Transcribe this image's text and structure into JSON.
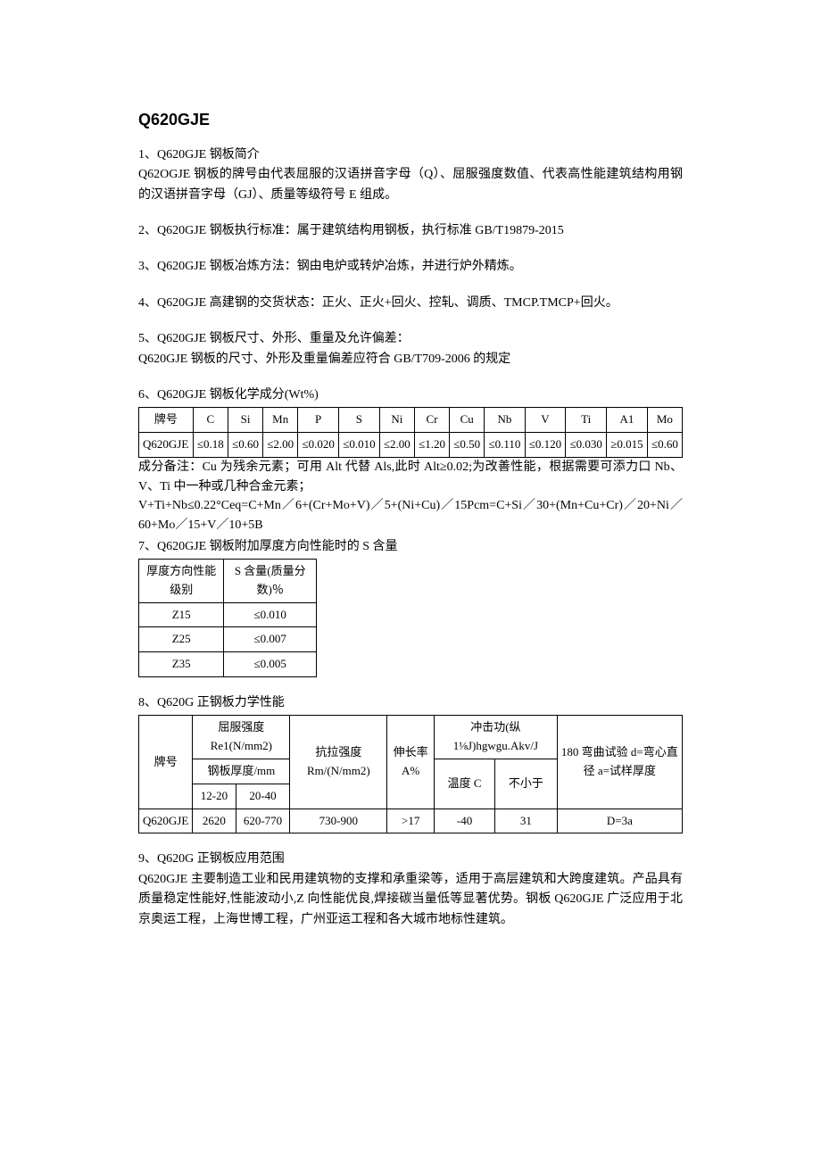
{
  "title": "Q620GJE",
  "sections": {
    "s1": {
      "heading": "1、Q620GJE 钢板简介",
      "body": "Q62OGJE 钢板的牌号由代表屈服的汉语拼音字母（Q）、屈服强度数值、代表高性能建筑结构用钢的汉语拼音字母（GJ）、质量等级符号 E 组成。"
    },
    "s2": {
      "line": "2、Q620GJE 钢板执行标准：属于建筑结构用钢板，执行标准 GB/T19879-2015"
    },
    "s3": {
      "line": "3、Q620GJE 钢板冶炼方法：钢由电炉或转炉冶炼，并进行炉外精炼。"
    },
    "s4": {
      "line": "4、Q620GJE 高建钢的交货状态：正火、正火+回火、控轧、调质、TMCP.TMCP+回火。"
    },
    "s5": {
      "heading": "5、Q620GJE 钢板尺寸、外形、重量及允许偏差：",
      "body": "Q620GJE 钢板的尺寸、外形及重量偏差应符合 GB/T709-2006 的规定"
    },
    "s6": {
      "heading": "6、Q620GJE 钢板化学成分(Wt%)",
      "columns": [
        "牌号",
        "C",
        "Si",
        "Mn",
        "P",
        "S",
        "Ni",
        "Cr",
        "Cu",
        "Nb",
        "V",
        "Ti",
        "A1",
        "Mo"
      ],
      "row_label": "Q620GJE",
      "row": [
        "≤0.18",
        "≤0.60",
        "≤2.00",
        "≤0.020",
        "≤0.010",
        "≤2.00",
        "≤1.20",
        "≤0.50",
        "≤0.110",
        "≤0.120",
        "≤0.030",
        "≥0.015",
        "≤0.60"
      ],
      "note1": "成分备注：Cu 为残余元素；可用 Alt 代替 Als,此时 Alt≥0.02;为改善性能，根据需要可添力口 Nb、V、Ti 中一种或几种合金元素；",
      "note2": "V+Ti+Nb≤0.22°Ceq=C+Mn／6+(Cr+Mo+V)／5+(Ni+Cu)／15Pcm=C+Si／30+(Mn+Cu+Cr)／20+Ni／60+Mo／15+V／10+5B"
    },
    "s7": {
      "heading": "7、Q620GJE 钢板附加厚度方向性能时的 S 含量",
      "columns": [
        "厚度方向性能级别",
        "S 含量(质量分数)％"
      ],
      "rows": [
        [
          "Z15",
          "≤0.010"
        ],
        [
          "Z25",
          "≤0.007"
        ],
        [
          "Z35",
          "≤0.005"
        ]
      ]
    },
    "s8": {
      "heading": "8、Q620G 正钢板力学性能",
      "header": {
        "grade": "牌号",
        "yield_group": "屈服强度 Re1(N/mm2)",
        "thickness_group": "钢板厚度/mm",
        "t1": "12-20",
        "t2": "20-40",
        "tensile": "抗拉强度Rm/(N/mm2)",
        "elongation": "伸长率 A%",
        "impact_group": "冲击功(纵 1⅛J)hgwgu.Akv/J",
        "temp": "温度 C",
        "min": "不小于",
        "bend": "180 弯曲试验 d=弯心直径 a=试样厚度"
      },
      "row": [
        "Q620GJE",
        "2620",
        "620-770",
        "730-900",
        ">17",
        "-40",
        "31",
        "D=3a"
      ]
    },
    "s9": {
      "heading": "9、Q620G 正钢板应用范围",
      "body": "Q620GJE 主要制造工业和民用建筑物的支撑和承重梁等，适用于高层建筑和大跨度建筑。产品具有质量稳定性能好,性能波动小,Z 向性能优良,焊接碳当量低等显著优势。钢板 Q620GJE 广泛应用于北京奥运工程，上海世博工程，广州亚运工程和各大城市地标性建筑。"
    }
  }
}
